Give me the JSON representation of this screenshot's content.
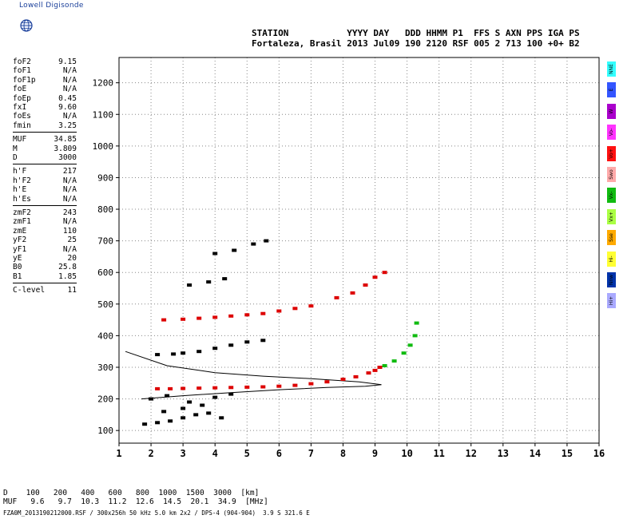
{
  "logo": {
    "text": "Lowell Digisonde",
    "icon": "globe-icon"
  },
  "header": {
    "line1": "STATION           YYYY DAY   DDD HHMM P1  FFS S AXN PPS IGA PS",
    "line2": "Fortaleza, Brasil 2013 Jul09 190 2120 RSF 005 2 713 100 +0+ B2"
  },
  "params": {
    "group1": [
      {
        "label": "foF2",
        "value": "9.15"
      },
      {
        "label": "foF1",
        "value": "N/A"
      },
      {
        "label": "foF1p",
        "value": "N/A"
      },
      {
        "label": "foE",
        "value": "N/A"
      },
      {
        "label": "foEp",
        "value": "0.45"
      },
      {
        "label": "fxI",
        "value": "9.60"
      },
      {
        "label": "foEs",
        "value": "N/A"
      },
      {
        "label": "fmin",
        "value": "3.25"
      }
    ],
    "group2": [
      {
        "label": "MUF",
        "value": "34.85"
      },
      {
        "label": "M",
        "value": "3.809"
      },
      {
        "label": "D",
        "value": "3000"
      }
    ],
    "group3": [
      {
        "label": "h'F",
        "value": "217"
      },
      {
        "label": "h'F2",
        "value": "N/A"
      },
      {
        "label": "h'E",
        "value": "N/A"
      },
      {
        "label": "h'Es",
        "value": "N/A"
      }
    ],
    "group4": [
      {
        "label": "zmF2",
        "value": "243"
      },
      {
        "label": "zmF1",
        "value": "N/A"
      },
      {
        "label": "zmE",
        "value": "110"
      },
      {
        "label": "yF2",
        "value": "25"
      },
      {
        "label": "yF1",
        "value": "N/A"
      },
      {
        "label": "yE",
        "value": "20"
      },
      {
        "label": "B0",
        "value": "25.8"
      },
      {
        "label": "B1",
        "value": "1.85"
      }
    ],
    "group5": [
      {
        "label": "C-level",
        "value": "11"
      }
    ]
  },
  "legend": [
    {
      "label": "NNE",
      "color": "#33ffff"
    },
    {
      "label": "E",
      "color": "#3355ff"
    },
    {
      "label": "W",
      "color": "#aa00cc"
    },
    {
      "label": "Vo-",
      "color": "#ff33ff"
    },
    {
      "label": "Vo+",
      "color": "#ff1111"
    },
    {
      "label": "Swo",
      "color": "#ffaaaa"
    },
    {
      "label": "Vx-",
      "color": "#11bb11"
    },
    {
      "label": "Vx+",
      "color": "#aaff44"
    },
    {
      "label": "Sse",
      "color": "#ffaa00"
    },
    {
      "label": "Hi-",
      "color": "#ffff33"
    },
    {
      "label": "Nnw",
      "color": "#0033aa"
    },
    {
      "label": "Hi+",
      "color": "#aaaaff"
    }
  ],
  "bottom": {
    "d_row": "D    100   200   400   600   800  1000  1500  3000  [km]",
    "muf_row": "MUF   9.6   9.7  10.3  11.2  12.6  14.5  20.1  34.9  [MHz]",
    "footer": "FZA0M_2013190212000.RSF / 300x256h 50 kHz 5.0 km 2x2 / DPS-4 (904-904)  3.9 S 321.6 E"
  },
  "chart_data": {
    "type": "scatter",
    "title": "",
    "xlabel": "",
    "ylabel": "",
    "xlim": [
      1,
      16
    ],
    "ylim": [
      60,
      1280
    ],
    "x_ticks": [
      1,
      2,
      3,
      4,
      5,
      6,
      7,
      8,
      9,
      10,
      11,
      12,
      13,
      14,
      15,
      16
    ],
    "y_ticks": [
      100,
      200,
      300,
      400,
      500,
      600,
      700,
      800,
      900,
      1000,
      1100,
      1200
    ],
    "grid": true,
    "series": [
      {
        "name": "O-trace F2 (1 hop)",
        "color": "#dd0000",
        "points": [
          [
            2.2,
            232
          ],
          [
            2.6,
            232
          ],
          [
            3.0,
            233
          ],
          [
            3.5,
            234
          ],
          [
            4.0,
            235
          ],
          [
            4.5,
            236
          ],
          [
            5.0,
            237
          ],
          [
            5.5,
            238
          ],
          [
            6.0,
            240
          ],
          [
            6.5,
            243
          ],
          [
            7.0,
            248
          ],
          [
            7.5,
            254
          ],
          [
            8.0,
            262
          ],
          [
            8.4,
            270
          ],
          [
            8.8,
            282
          ],
          [
            9.0,
            290
          ],
          [
            9.15,
            300
          ]
        ]
      },
      {
        "name": "X-trace",
        "color": "#11bb11",
        "points": [
          [
            9.3,
            305
          ],
          [
            9.6,
            320
          ],
          [
            9.9,
            345
          ],
          [
            10.1,
            370
          ],
          [
            10.25,
            400
          ],
          [
            10.3,
            440
          ]
        ]
      },
      {
        "name": "2nd hop",
        "color": "#dd0000",
        "points": [
          [
            2.4,
            450
          ],
          [
            3.0,
            452
          ],
          [
            3.5,
            455
          ],
          [
            4.0,
            458
          ],
          [
            4.5,
            462
          ],
          [
            5.0,
            466
          ],
          [
            5.5,
            470
          ],
          [
            6.0,
            478
          ],
          [
            6.5,
            486
          ],
          [
            7.0,
            494
          ],
          [
            7.8,
            520
          ],
          [
            8.3,
            535
          ],
          [
            8.7,
            560
          ],
          [
            9.0,
            585
          ],
          [
            9.3,
            600
          ]
        ]
      },
      {
        "name": "Spread echoes",
        "color": "#000000",
        "points": [
          [
            2.2,
            340
          ],
          [
            2.7,
            342
          ],
          [
            3.0,
            345
          ],
          [
            3.5,
            350
          ],
          [
            4.0,
            360
          ],
          [
            4.5,
            370
          ],
          [
            5.0,
            380
          ],
          [
            5.5,
            385
          ],
          [
            3.2,
            560
          ],
          [
            3.8,
            570
          ],
          [
            4.3,
            580
          ],
          [
            4.0,
            660
          ],
          [
            4.6,
            670
          ],
          [
            5.2,
            690
          ],
          [
            5.6,
            700
          ]
        ]
      },
      {
        "name": "Low echoes",
        "color": "#000000",
        "points": [
          [
            1.8,
            120
          ],
          [
            2.2,
            125
          ],
          [
            2.6,
            130
          ],
          [
            3.0,
            140
          ],
          [
            3.4,
            150
          ],
          [
            3.8,
            155
          ],
          [
            4.2,
            140
          ],
          [
            2.4,
            160
          ],
          [
            3.0,
            170
          ],
          [
            3.6,
            180
          ],
          [
            2.0,
            200
          ],
          [
            2.5,
            210
          ],
          [
            3.2,
            190
          ],
          [
            4.0,
            205
          ],
          [
            4.5,
            215
          ]
        ]
      }
    ],
    "profile_curve_upper": [
      [
        1.2,
        350
      ],
      [
        2.5,
        305
      ],
      [
        4.0,
        283
      ],
      [
        5.5,
        272
      ],
      [
        7.0,
        264
      ],
      [
        8.5,
        254
      ],
      [
        9.2,
        245
      ]
    ],
    "profile_curve_lower": [
      [
        1.7,
        200
      ],
      [
        3.0,
        210
      ],
      [
        4.5,
        220
      ],
      [
        6.0,
        229
      ],
      [
        7.5,
        236
      ],
      [
        8.7,
        240
      ],
      [
        9.2,
        245
      ]
    ]
  }
}
